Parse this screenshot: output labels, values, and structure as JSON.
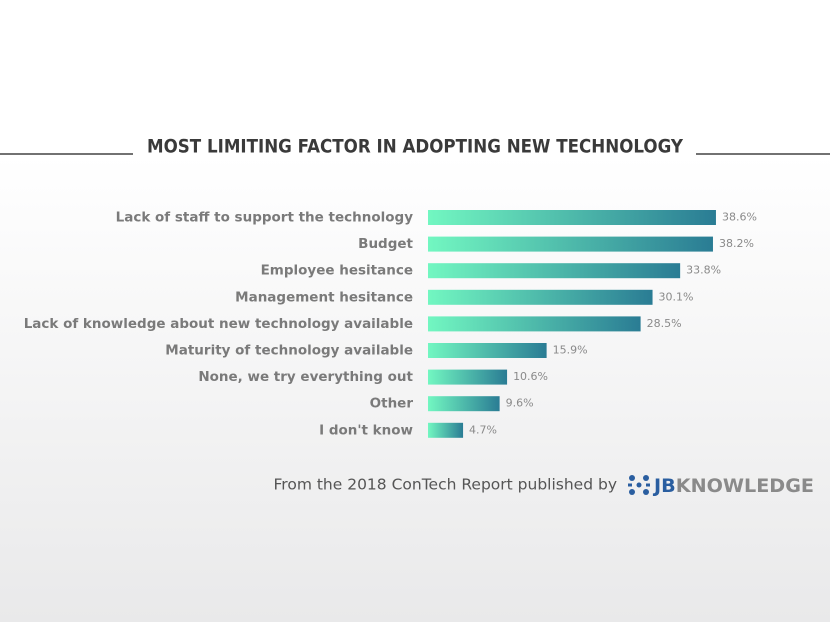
{
  "chart_data": {
    "type": "bar",
    "orientation": "horizontal",
    "title": "MOST LIMITING FACTOR IN ADOPTING NEW TECHNOLOGY",
    "categories": [
      "Lack of staff to support the technology",
      "Budget",
      "Employee hesitance",
      "Management hesitance",
      "Lack of knowledge about new technology available",
      "Maturity of technology available",
      "None, we try everything out",
      "Other",
      "I don't know"
    ],
    "values": [
      38.6,
      38.2,
      33.8,
      30.1,
      28.5,
      15.9,
      10.6,
      9.6,
      4.7
    ],
    "value_labels": [
      "38.6%",
      "38.2%",
      "33.8%",
      "30.1%",
      "28.5%",
      "15.9%",
      "10.6%",
      "9.6%",
      "4.7%"
    ],
    "colors": [
      "#72f7c1",
      "#2a7c94"
    ],
    "source": {
      "text": "From the 2018 ConTech Report published by",
      "logo_bold": "JB",
      "logo_rest": "KNOWLEDGE"
    }
  }
}
